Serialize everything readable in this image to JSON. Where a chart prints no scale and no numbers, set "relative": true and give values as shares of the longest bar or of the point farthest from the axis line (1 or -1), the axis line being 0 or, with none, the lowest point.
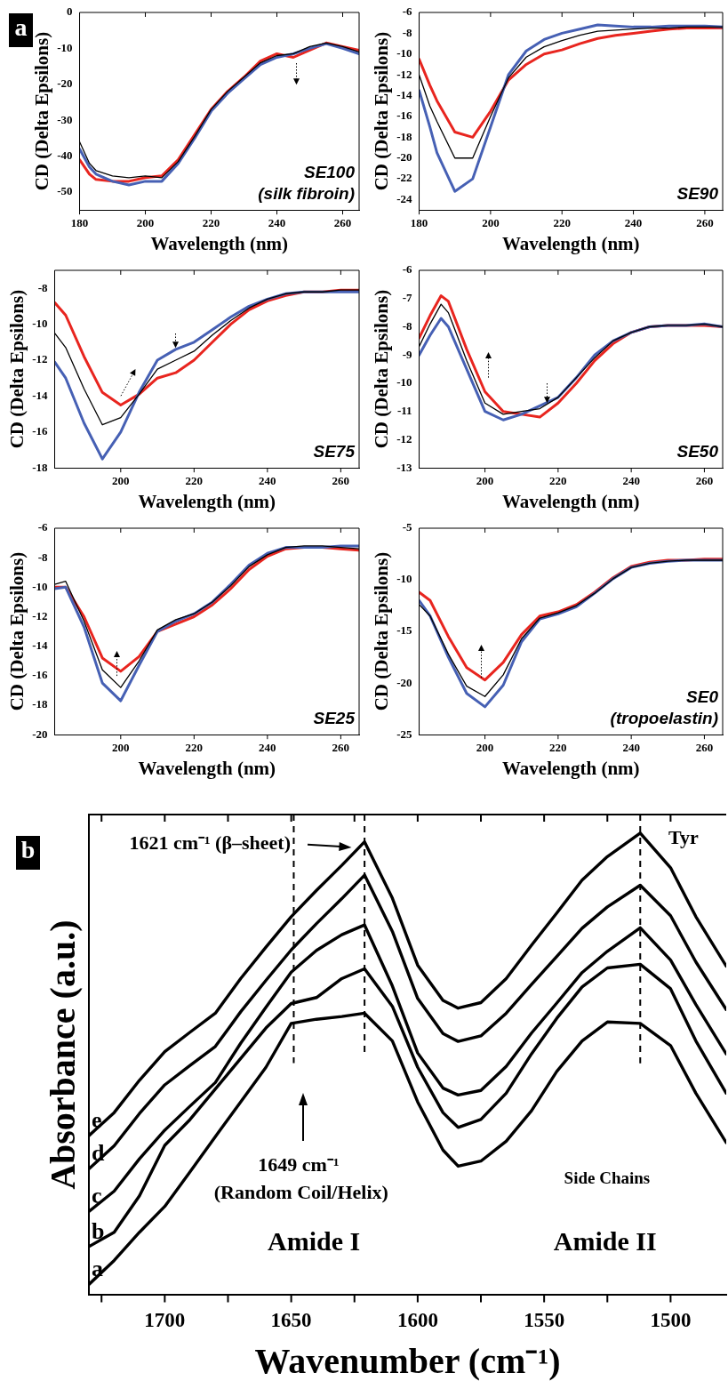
{
  "chart_data": [
    {
      "type": "line",
      "title": "a",
      "xlabel": "Wavelength (nm)",
      "ylabel": "CD (Delta Epsilons)",
      "xlim": [
        180,
        265
      ],
      "xticks": [
        180,
        200,
        220,
        240,
        260
      ],
      "ylim": [
        -55,
        0
      ],
      "yticks": [
        0,
        -10,
        -20,
        -30,
        -40,
        -50
      ],
      "annotations": [
        "SE100",
        "(silk fibroin)"
      ],
      "x": [
        180,
        183,
        185,
        190,
        195,
        200,
        205,
        210,
        215,
        220,
        225,
        230,
        235,
        240,
        245,
        250,
        255,
        260,
        265
      ],
      "series": [
        {
          "color": "#000000",
          "values": [
            -36,
            -42,
            -44,
            -45.5,
            -46,
            -45.5,
            -46,
            -41.5,
            -34.5,
            -27,
            -22,
            -18,
            -14,
            -12,
            -11.5,
            -9.5,
            -8.5,
            -9.5,
            -11
          ]
        },
        {
          "color": "#4660b4",
          "values": [
            -38,
            -43,
            -45,
            -47,
            -48,
            -47,
            -47,
            -42,
            -35,
            -27.5,
            -22.5,
            -18.5,
            -14.5,
            -12.5,
            -11.5,
            -10,
            -8.7,
            -10,
            -11.5
          ]
        },
        {
          "color": "#e8251f",
          "values": [
            -41,
            -45,
            -46.5,
            -47,
            -47,
            -46,
            -45.5,
            -41,
            -34,
            -27,
            -22,
            -18,
            -13.5,
            -11.5,
            -12.5,
            -10.5,
            -8.5,
            -9.5,
            -10.5
          ]
        }
      ]
    },
    {
      "type": "line",
      "xlabel": "Wavelength (nm)",
      "ylabel": "CD (Delta Epsilons)",
      "xlim": [
        180,
        265
      ],
      "xticks": [
        180,
        200,
        220,
        240,
        260
      ],
      "ylim": [
        -25,
        -6
      ],
      "yticks": [
        -6,
        -8,
        -10,
        -12,
        -14,
        -16,
        -18,
        -20,
        -22,
        -24
      ],
      "annotations": [
        "SE90"
      ],
      "x": [
        180,
        183,
        185,
        190,
        195,
        200,
        205,
        210,
        215,
        220,
        225,
        230,
        235,
        240,
        245,
        250,
        255,
        260,
        265
      ],
      "series": [
        {
          "color": "#000000",
          "values": [
            -12,
            -15,
            -16.5,
            -20,
            -20,
            -16,
            -12.3,
            -10.3,
            -9.3,
            -8.7,
            -8.2,
            -7.8,
            -7.7,
            -7.6,
            -7.5,
            -7.5,
            -7.4,
            -7.4,
            -7.4
          ]
        },
        {
          "color": "#4660b4",
          "values": [
            -13.5,
            -17,
            -19.5,
            -23.2,
            -22,
            -17,
            -12,
            -9.7,
            -8.6,
            -8,
            -7.6,
            -7.2,
            -7.3,
            -7.4,
            -7.4,
            -7.3,
            -7.3,
            -7.3,
            -7.4
          ]
        },
        {
          "color": "#e8251f",
          "values": [
            -10.5,
            -13,
            -14.5,
            -17.5,
            -18,
            -15.5,
            -12.5,
            -11,
            -10,
            -9.6,
            -9,
            -8.5,
            -8.2,
            -8,
            -7.8,
            -7.6,
            -7.5,
            -7.5,
            -7.5
          ]
        }
      ]
    },
    {
      "type": "line",
      "xlabel": "Wavelength (nm)",
      "ylabel": "CD (Delta Epsilons)",
      "xlim": [
        182,
        265
      ],
      "xticks": [
        200,
        220,
        240,
        260
      ],
      "ylim": [
        -18,
        -7
      ],
      "yticks": [
        -8,
        -10,
        -12,
        -14,
        -16,
        -18
      ],
      "annotations": [
        "SE75"
      ],
      "x": [
        182,
        185,
        190,
        195,
        200,
        205,
        210,
        215,
        220,
        225,
        230,
        235,
        240,
        245,
        250,
        255,
        260,
        265
      ],
      "series": [
        {
          "color": "#000000",
          "values": [
            -10.5,
            -11.3,
            -13.6,
            -15.6,
            -15.2,
            -13.9,
            -12.5,
            -12,
            -11.5,
            -10.6,
            -9.8,
            -9.1,
            -8.6,
            -8.3,
            -8.2,
            -8.2,
            -8.1,
            -8.1
          ]
        },
        {
          "color": "#4660b4",
          "values": [
            -12.1,
            -13,
            -15.5,
            -17.5,
            -16,
            -13.8,
            -12,
            -11.4,
            -11,
            -10.3,
            -9.6,
            -9,
            -8.6,
            -8.3,
            -8.2,
            -8.2,
            -8.2,
            -8.2
          ]
        },
        {
          "color": "#e8251f",
          "values": [
            -8.8,
            -9.5,
            -11.8,
            -13.8,
            -14.5,
            -13.9,
            -13,
            -12.7,
            -12,
            -11,
            -10,
            -9.2,
            -8.7,
            -8.4,
            -8.2,
            -8.2,
            -8.1,
            -8.1
          ]
        }
      ]
    },
    {
      "type": "line",
      "xlabel": "Wavelength (nm)",
      "ylabel": "CD (Delta Epsilons)",
      "xlim": [
        182,
        265
      ],
      "xticks": [
        200,
        220,
        240,
        260
      ],
      "ylim": [
        -13,
        -6
      ],
      "yticks": [
        -6,
        -7,
        -8,
        -9,
        -10,
        -11,
        -12,
        -13
      ],
      "annotations": [
        "SE50"
      ],
      "x": [
        182,
        185,
        188,
        190,
        195,
        200,
        205,
        210,
        215,
        220,
        225,
        230,
        235,
        240,
        245,
        250,
        255,
        260,
        265
      ],
      "series": [
        {
          "color": "#000000",
          "values": [
            -8.7,
            -7.9,
            -7.2,
            -7.5,
            -9.2,
            -10.7,
            -11.1,
            -11,
            -10.9,
            -10.5,
            -9.8,
            -9.1,
            -8.5,
            -8.2,
            -8,
            -7.95,
            -7.95,
            -7.9,
            -8
          ]
        },
        {
          "color": "#4660b4",
          "values": [
            -9,
            -8.3,
            -7.7,
            -8,
            -9.5,
            -11,
            -11.3,
            -11.1,
            -10.8,
            -10.5,
            -9.8,
            -9,
            -8.5,
            -8.2,
            -8,
            -7.95,
            -7.95,
            -7.9,
            -8
          ]
        },
        {
          "color": "#e8251f",
          "values": [
            -8.4,
            -7.6,
            -6.9,
            -7.1,
            -8.8,
            -10.3,
            -11,
            -11.1,
            -11.2,
            -10.7,
            -10,
            -9.2,
            -8.6,
            -8.2,
            -8,
            -7.95,
            -7.95,
            -7.95,
            -8
          ]
        }
      ]
    },
    {
      "type": "line",
      "xlabel": "Wavelength (nm)",
      "ylabel": "CD (Delta Epsilons)",
      "xlim": [
        182,
        265
      ],
      "xticks": [
        200,
        220,
        240,
        260
      ],
      "ylim": [
        -20,
        -6
      ],
      "yticks": [
        -6,
        -8,
        -10,
        -12,
        -14,
        -16,
        -18,
        -20
      ],
      "annotations": [
        "SE25"
      ],
      "x": [
        182,
        185,
        190,
        195,
        200,
        205,
        210,
        215,
        220,
        225,
        230,
        235,
        240,
        245,
        250,
        255,
        260,
        265
      ],
      "series": [
        {
          "color": "#000000",
          "values": [
            -9.8,
            -9.6,
            -12.3,
            -15.6,
            -16.8,
            -15,
            -12.9,
            -12.2,
            -11.8,
            -11,
            -9.9,
            -8.6,
            -7.8,
            -7.3,
            -7.2,
            -7.2,
            -7.3,
            -7.4
          ]
        },
        {
          "color": "#4660b4",
          "values": [
            -10.1,
            -10,
            -12.7,
            -16.5,
            -17.7,
            -15.3,
            -13,
            -12.3,
            -11.8,
            -11,
            -9.8,
            -8.5,
            -7.7,
            -7.3,
            -7.3,
            -7.3,
            -7.2,
            -7.2
          ]
        },
        {
          "color": "#e8251f",
          "values": [
            -10,
            -10,
            -12,
            -14.8,
            -15.7,
            -14.7,
            -13,
            -12.5,
            -12,
            -11.2,
            -10.1,
            -8.8,
            -7.9,
            -7.4,
            -7.3,
            -7.3,
            -7.4,
            -7.5
          ]
        }
      ]
    },
    {
      "type": "line",
      "xlabel": "Wavelength (nm)",
      "ylabel": "CD (Delta Epsilons)",
      "xlim": [
        182,
        265
      ],
      "xticks": [
        200,
        220,
        240,
        260
      ],
      "ylim": [
        -25,
        -5
      ],
      "yticks": [
        -5,
        -10,
        -15,
        -20,
        -25
      ],
      "annotations": [
        "SE0",
        "(tropoelastin)"
      ],
      "x": [
        182,
        185,
        190,
        195,
        200,
        205,
        210,
        215,
        220,
        225,
        230,
        235,
        240,
        245,
        250,
        255,
        260,
        265
      ],
      "series": [
        {
          "color": "#000000",
          "values": [
            -12.4,
            -13.5,
            -17.2,
            -20.3,
            -21.3,
            -19.2,
            -15.7,
            -13.7,
            -13.2,
            -12.5,
            -11.3,
            -9.9,
            -8.8,
            -8.4,
            -8.2,
            -8.1,
            -8.1,
            -8.1
          ]
        },
        {
          "color": "#4660b4",
          "values": [
            -12,
            -13.5,
            -17.5,
            -21,
            -22.3,
            -20.2,
            -16,
            -13.8,
            -13.3,
            -12.6,
            -11.3,
            -9.9,
            -8.8,
            -8.4,
            -8.2,
            -8.1,
            -8.1,
            -8.1
          ]
        },
        {
          "color": "#e8251f",
          "values": [
            -11.2,
            -12,
            -15.5,
            -18.5,
            -19.7,
            -18,
            -15.3,
            -13.5,
            -13.1,
            -12.4,
            -11.2,
            -9.8,
            -8.7,
            -8.3,
            -8.1,
            -8.1,
            -8,
            -8
          ]
        }
      ]
    },
    {
      "type": "line",
      "title": "b",
      "xlabel": "Wavenumber (cm⁻¹)",
      "ylabel": "Absorbance (a.u.)",
      "relative": true,
      "tick_labels": "x",
      "xlim": [
        1730,
        1478
      ],
      "xticks": [
        {
          "value": 1725,
          "label": null
        },
        1700,
        {
          "value": 1675,
          "label": null
        },
        1650,
        {
          "value": 1625,
          "label": null
        },
        1600,
        {
          "value": 1575,
          "label": null
        },
        1550,
        {
          "value": 1525,
          "label": null
        },
        1500
      ],
      "ref_lines": [
        {
          "axis": "x",
          "value": 1649,
          "line_style": "dashed",
          "color": "#000000"
        },
        {
          "axis": "x",
          "value": 1621,
          "line_style": "dashed",
          "color": "#000000"
        },
        {
          "axis": "x",
          "value": 1512,
          "line_style": "dashed",
          "color": "#000000"
        }
      ],
      "annotations": [
        "1621 cm⁻¹ (β–sheet)",
        "Tyr",
        "1649 cm⁻¹",
        "(Random Coil/Helix)",
        "Side Chains",
        "Amide I",
        "Amide II"
      ],
      "x": [
        1730,
        1720,
        1710,
        1700,
        1690,
        1680,
        1670,
        1660,
        1650,
        1640,
        1630,
        1621,
        1610,
        1600,
        1590,
        1584,
        1575,
        1565,
        1555,
        1545,
        1535,
        1525,
        1512,
        1500,
        1490,
        1478
      ],
      "series": [
        {
          "name": "a",
          "color": "#000000",
          "values": [
            0.023,
            0.075,
            0.136,
            0.192,
            0.267,
            0.343,
            0.418,
            0.493,
            0.588,
            0.597,
            0.603,
            0.61,
            0.55,
            0.418,
            0.314,
            0.279,
            0.29,
            0.333,
            0.399,
            0.484,
            0.55,
            0.591,
            0.588,
            0.54,
            0.437,
            0.33
          ]
        },
        {
          "name": "b",
          "color": "#000000",
          "values": [
            0.105,
            0.136,
            0.215,
            0.324,
            0.38,
            0.446,
            0.512,
            0.578,
            0.631,
            0.644,
            0.685,
            0.706,
            0.625,
            0.493,
            0.395,
            0.363,
            0.38,
            0.437,
            0.522,
            0.599,
            0.667,
            0.708,
            0.716,
            0.663,
            0.55,
            0.437
          ]
        },
        {
          "name": "c",
          "color": "#000000",
          "values": [
            0.181,
            0.225,
            0.295,
            0.357,
            0.409,
            0.46,
            0.545,
            0.623,
            0.699,
            0.746,
            0.78,
            0.801,
            0.669,
            0.524,
            0.448,
            0.433,
            0.443,
            0.495,
            0.567,
            0.632,
            0.698,
            0.744,
            0.795,
            0.725,
            0.629,
            0.522
          ]
        },
        {
          "name": "d",
          "color": "#000000",
          "values": [
            0.273,
            0.323,
            0.393,
            0.455,
            0.497,
            0.538,
            0.613,
            0.681,
            0.747,
            0.804,
            0.858,
            0.909,
            0.787,
            0.642,
            0.566,
            0.549,
            0.561,
            0.61,
            0.672,
            0.733,
            0.794,
            0.84,
            0.887,
            0.821,
            0.721,
            0.618
          ]
        },
        {
          "name": "e",
          "color": "#000000",
          "values": [
            0.345,
            0.395,
            0.465,
            0.527,
            0.569,
            0.61,
            0.685,
            0.753,
            0.819,
            0.876,
            0.93,
            0.981,
            0.859,
            0.714,
            0.638,
            0.621,
            0.633,
            0.685,
            0.757,
            0.827,
            0.898,
            0.949,
            1,
            0.925,
            0.819,
            0.712
          ]
        }
      ]
    }
  ]
}
